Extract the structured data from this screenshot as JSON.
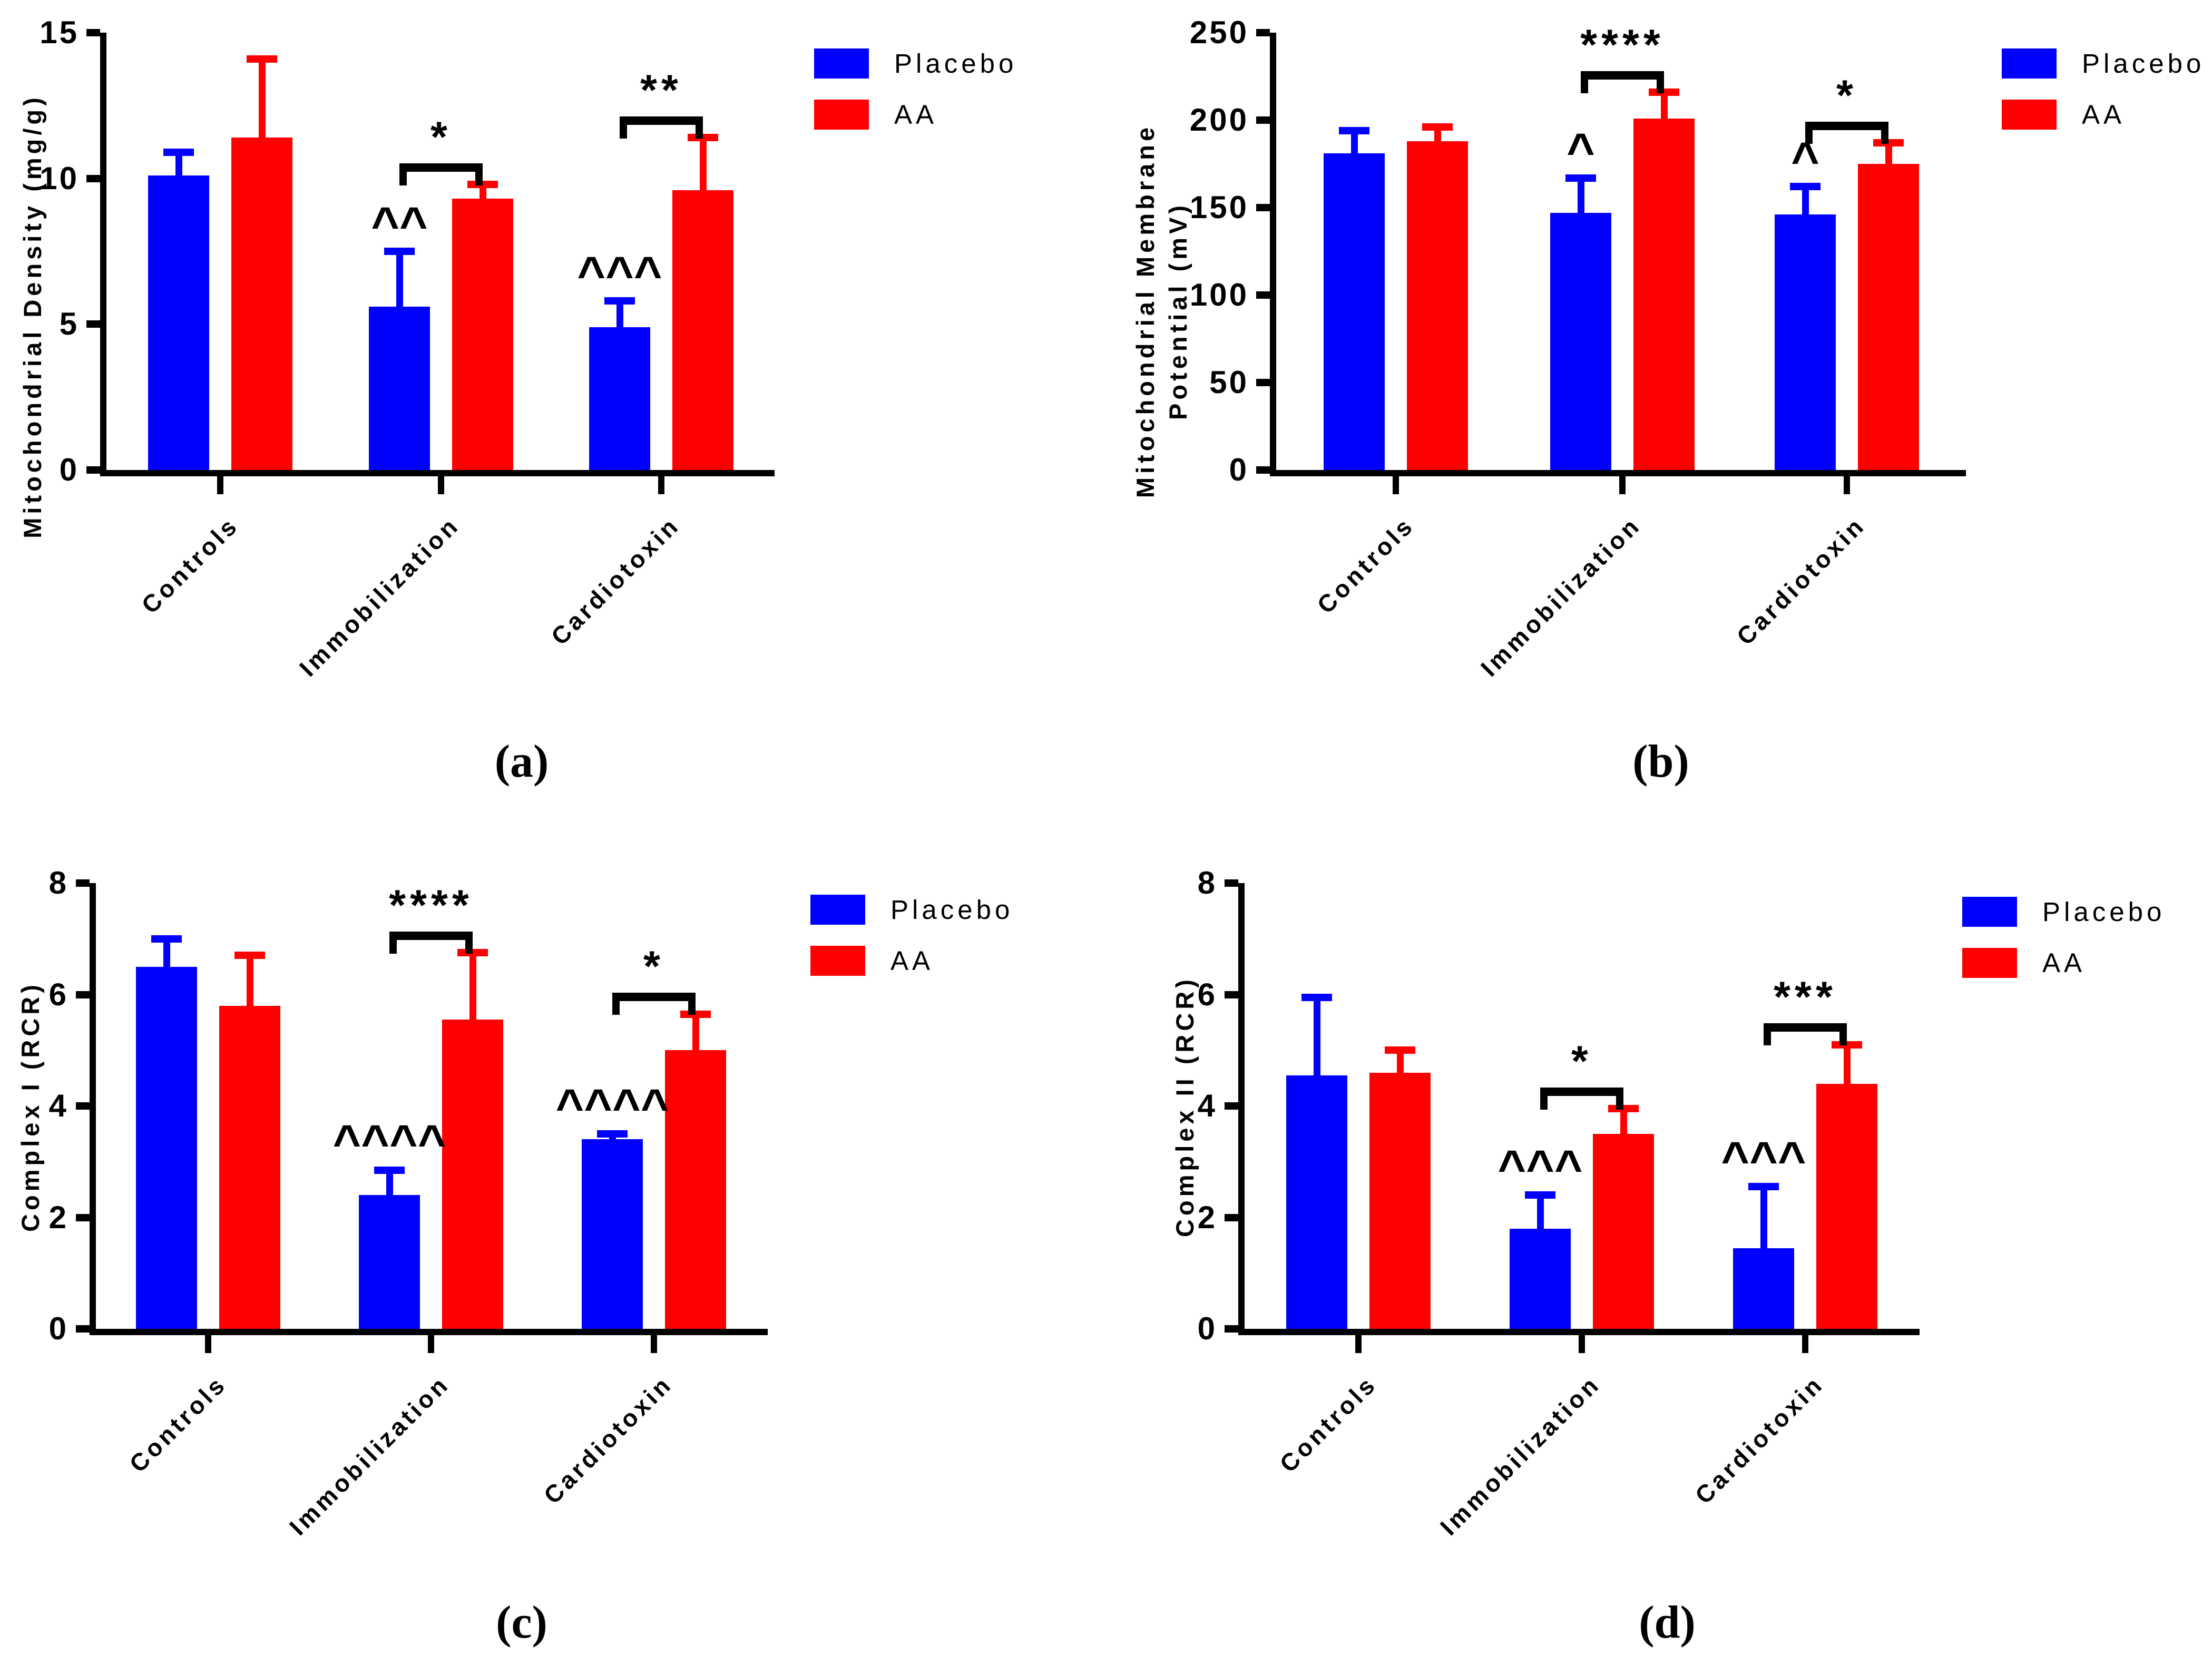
{
  "figure": {
    "colors": {
      "placebo": "#0000FF",
      "aa": "#FF0000",
      "annotation": "#000000"
    },
    "legend": {
      "position": "top-right",
      "items": [
        {
          "label": "Placebo",
          "color_key": "placebo"
        },
        {
          "label": "AA",
          "color_key": "aa"
        }
      ]
    },
    "categories": [
      "Controls",
      "Immobilization",
      "Cardiotoxin"
    ]
  },
  "chart_data": [
    {
      "panel": "a",
      "panel_label": "(a)",
      "type": "bar",
      "ylabel": "Mitochondrial Density (mg/g)",
      "ylabel_lines": [
        "Mitochondrial Density (mg/g)"
      ],
      "ylim": [
        0,
        15
      ],
      "yticks": [
        0,
        5,
        10,
        15
      ],
      "grid": false,
      "categories": [
        "Controls",
        "Immobilization",
        "Cardiotoxin"
      ],
      "series": [
        {
          "name": "Placebo",
          "values": [
            10.1,
            5.6,
            4.9
          ],
          "sd_errors": [
            0.8,
            1.9,
            0.9
          ]
        },
        {
          "name": "AA",
          "values": [
            11.4,
            9.3,
            9.6
          ],
          "sd_errors": [
            2.7,
            0.5,
            1.8
          ]
        }
      ],
      "placebo_caret_annotations": [
        "",
        "^^",
        "^^^"
      ],
      "significance_brackets": [
        "",
        "*",
        "**"
      ]
    },
    {
      "panel": "b",
      "panel_label": "(b)",
      "type": "bar",
      "ylabel": "Mitochondrial Membrane Potential (mV)",
      "ylabel_lines": [
        "Mitochondrial Membrane",
        "Potential (mV)"
      ],
      "ylim": [
        0,
        250
      ],
      "yticks": [
        0,
        50,
        100,
        150,
        200,
        250
      ],
      "grid": false,
      "categories": [
        "Controls",
        "Immobilization",
        "Cardiotoxin"
      ],
      "series": [
        {
          "name": "Placebo",
          "values": [
            181,
            147,
            146
          ],
          "sd_errors": [
            13,
            20,
            16
          ]
        },
        {
          "name": "AA",
          "values": [
            188,
            201,
            175
          ],
          "sd_errors": [
            8,
            15,
            12
          ]
        }
      ],
      "placebo_caret_annotations": [
        "",
        "^",
        "^"
      ],
      "significance_brackets": [
        "",
        "****",
        "*"
      ]
    },
    {
      "panel": "c",
      "panel_label": "(c)",
      "type": "bar",
      "ylabel": "Complex I (RCR)",
      "ylabel_lines": [
        "Complex I (RCR)"
      ],
      "ylim": [
        0,
        8
      ],
      "yticks": [
        0,
        2,
        4,
        6,
        8
      ],
      "grid": false,
      "categories": [
        "Controls",
        "Immobilization",
        "Cardiotoxin"
      ],
      "series": [
        {
          "name": "Placebo",
          "values": [
            6.5,
            2.4,
            3.4
          ],
          "sd_errors": [
            0.5,
            0.45,
            0.1
          ]
        },
        {
          "name": "AA",
          "values": [
            5.8,
            5.55,
            5.0
          ],
          "sd_errors": [
            0.9,
            1.2,
            0.65
          ]
        }
      ],
      "placebo_caret_annotations": [
        "",
        "^^^^",
        "^^^^"
      ],
      "significance_brackets": [
        "",
        "****",
        "*"
      ]
    },
    {
      "panel": "d",
      "panel_label": "(d)",
      "type": "bar",
      "ylabel": "Complex II (RCR)",
      "ylabel_lines": [
        "Complex II (RCR)"
      ],
      "ylim": [
        0,
        8
      ],
      "yticks": [
        0,
        2,
        4,
        6,
        8
      ],
      "grid": false,
      "categories": [
        "Controls",
        "Immobilization",
        "Cardiotoxin"
      ],
      "series": [
        {
          "name": "Placebo",
          "values": [
            4.55,
            1.8,
            1.45
          ],
          "sd_errors": [
            1.4,
            0.6,
            1.1
          ]
        },
        {
          "name": "AA",
          "values": [
            4.6,
            3.5,
            4.4
          ],
          "sd_errors": [
            0.4,
            0.45,
            0.7
          ]
        }
      ],
      "placebo_caret_annotations": [
        "",
        "^^^",
        "^^^"
      ],
      "significance_brackets": [
        "",
        "*",
        "***"
      ]
    }
  ]
}
